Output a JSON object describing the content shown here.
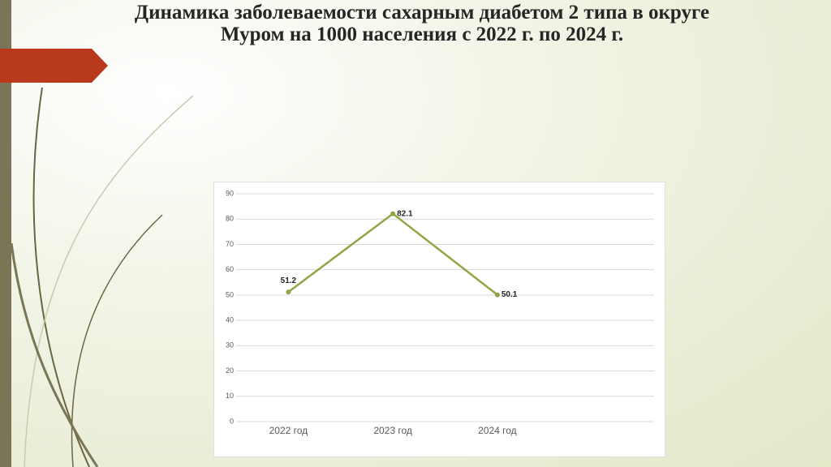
{
  "chart_data": {
    "type": "line",
    "title": "Динамика заболеваемости сахарным диабетом 2 типа в округе Муром на 1000 населения с 2022 г. по 2024 г.",
    "categories": [
      "2022 год",
      "2023 год",
      "2024 год",
      null
    ],
    "series": [
      {
        "color": "#8ea644",
        "values": [
          51.2,
          82.1,
          50.1,
          null
        ]
      }
    ],
    "ylim": [
      0,
      90
    ],
    "yticks": [
      0,
      10,
      20,
      30,
      40,
      50,
      60,
      70,
      80,
      90
    ],
    "grid": true
  }
}
